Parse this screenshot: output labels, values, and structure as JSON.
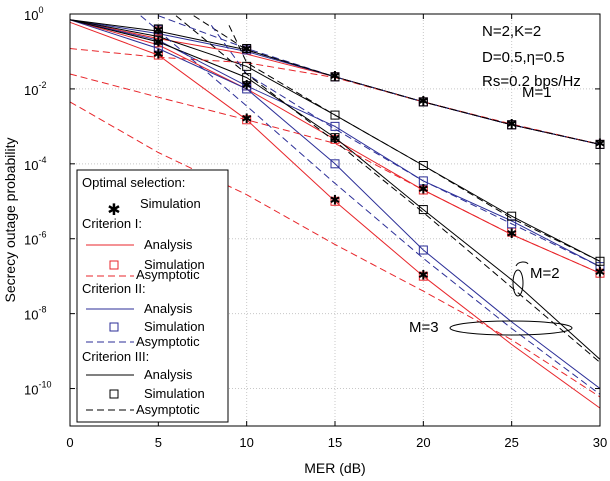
{
  "chart_data": {
    "type": "line",
    "xlabel": "MER (dB)",
    "ylabel": "Secrecy outage probability",
    "xlim": [
      0,
      30
    ],
    "ylim_log10": [
      -11,
      0
    ],
    "y_scale": "log",
    "x_ticks": [
      "0",
      "5",
      "10",
      "15",
      "20",
      "25",
      "30"
    ],
    "y_ticks": [
      {
        "base": "10",
        "exp": "0"
      },
      {
        "base": "10",
        "exp": "-2"
      },
      {
        "base": "10",
        "exp": "-4"
      },
      {
        "base": "10",
        "exp": "-6"
      },
      {
        "base": "10",
        "exp": "-8"
      },
      {
        "base": "10",
        "exp": "-10"
      }
    ],
    "grid": true,
    "params": {
      "line1": "N=2,K=2",
      "line2": "D=0.5,η=0.5",
      "line3": "Rs=0.2 bps/Hz"
    },
    "annotations": {
      "m1": "M=1",
      "m2": "M=2",
      "m3": "M=3"
    },
    "legend": {
      "placement": "bottom-left",
      "group_optimal": "Optimal selection:",
      "group_c1": "Criterion I:",
      "group_c2": "Criterion II:",
      "group_c3": "Criterion III:",
      "simulation": "Simulation",
      "analysis": "Analysis",
      "asymptotic": "Asymptotic"
    },
    "colors": {
      "criterion_1": "#e8262b",
      "criterion_2": "#2b2e97",
      "criterion_3": "#000000",
      "optimal": "#000000"
    },
    "series": [
      {
        "criterion": "I",
        "M": 1,
        "kind": "analysis",
        "x": [
          0,
          5,
          10,
          15,
          20,
          25,
          30
        ],
        "y": [
          0.7,
          0.22,
          0.085,
          0.021,
          0.0045,
          0.0011,
          0.00033
        ]
      },
      {
        "criterion": "I",
        "M": 1,
        "kind": "asymptotic",
        "x": [
          0,
          5,
          10,
          15,
          20,
          25,
          30
        ],
        "y": [
          0.12,
          0.07,
          0.05,
          0.02,
          0.0045,
          0.00115,
          0.00033
        ]
      },
      {
        "criterion": "I",
        "M": 1,
        "kind": "simulation",
        "x": [
          5,
          10,
          15,
          20,
          25,
          30
        ],
        "y": [
          0.35,
          0.11,
          0.021,
          0.0045,
          0.0011,
          0.00033
        ]
      },
      {
        "criterion": "II",
        "M": 1,
        "kind": "analysis",
        "x": [
          0,
          5,
          10,
          15,
          20,
          25,
          30
        ],
        "y": [
          0.7,
          0.3,
          0.1,
          0.021,
          0.0045,
          0.0011,
          0.00033
        ]
      },
      {
        "criterion": "II",
        "M": 1,
        "kind": "asymptotic",
        "x": [
          5,
          10,
          15,
          20,
          25,
          30
        ],
        "y": [
          0.9,
          0.12,
          0.021,
          0.0045,
          0.0011,
          0.00033
        ]
      },
      {
        "criterion": "II",
        "M": 1,
        "kind": "simulation",
        "x": [
          5,
          10,
          15,
          20,
          25,
          30
        ],
        "y": [
          0.38,
          0.11,
          0.021,
          0.0045,
          0.0011,
          0.00033
        ]
      },
      {
        "criterion": "III",
        "M": 1,
        "kind": "analysis",
        "x": [
          0,
          5,
          10,
          15,
          20,
          25,
          30
        ],
        "y": [
          0.7,
          0.35,
          0.11,
          0.021,
          0.0045,
          0.0011,
          0.00033
        ]
      },
      {
        "criterion": "III",
        "M": 1,
        "kind": "asymptotic",
        "x": [
          7,
          10,
          15,
          20,
          25,
          30
        ],
        "y": [
          0.9,
          0.11,
          0.021,
          0.0045,
          0.0011,
          0.00033
        ]
      },
      {
        "criterion": "III",
        "M": 1,
        "kind": "simulation",
        "x": [
          5,
          10,
          15,
          20,
          25,
          30
        ],
        "y": [
          0.4,
          0.12,
          0.021,
          0.0045,
          0.0011,
          0.00033
        ]
      },
      {
        "criterion": "I",
        "M": 2,
        "kind": "analysis",
        "x": [
          0,
          5,
          10,
          15,
          20,
          25,
          30
        ],
        "y": [
          0.7,
          0.15,
          0.01,
          0.00045,
          2e-05,
          1.3e-06,
          1.2e-07
        ]
      },
      {
        "criterion": "I",
        "M": 2,
        "kind": "asymptotic",
        "x": [
          0,
          5,
          10,
          15,
          20,
          25,
          30
        ],
        "y": [
          0.025,
          0.006,
          0.0015,
          0.00035,
          2e-05,
          1.3e-06,
          1.2e-07
        ]
      },
      {
        "criterion": "I",
        "M": 2,
        "kind": "simulation",
        "x": [
          5,
          10,
          15,
          20,
          25,
          30
        ],
        "y": [
          0.17,
          0.012,
          0.00045,
          2e-05,
          1.5e-06,
          1.2e-07
        ]
      },
      {
        "criterion": "II",
        "M": 2,
        "kind": "analysis",
        "x": [
          0,
          5,
          10,
          15,
          20,
          25,
          30
        ],
        "y": [
          0.7,
          0.2,
          0.012,
          0.001,
          3.5e-05,
          3e-06,
          1.8e-07
        ]
      },
      {
        "criterion": "II",
        "M": 2,
        "kind": "asymptotic",
        "x": [
          8,
          10,
          15,
          20,
          25,
          30
        ],
        "y": [
          0.5,
          0.025,
          0.00085,
          3.5e-05,
          2.5e-06,
          1.8e-07
        ]
      },
      {
        "criterion": "II",
        "M": 2,
        "kind": "simulation",
        "x": [
          5,
          10,
          15,
          20,
          25,
          30
        ],
        "y": [
          0.2,
          0.012,
          0.001,
          3.5e-05,
          2.5e-06,
          1.8e-07
        ]
      },
      {
        "criterion": "III",
        "M": 2,
        "kind": "analysis",
        "x": [
          0,
          5,
          10,
          15,
          20,
          25,
          30
        ],
        "y": [
          0.7,
          0.25,
          0.04,
          0.002,
          9e-05,
          4e-06,
          2.5e-07
        ]
      },
      {
        "criterion": "III",
        "M": 2,
        "kind": "asymptotic",
        "x": [
          9,
          10,
          15,
          20,
          25,
          30
        ],
        "y": [
          0.5,
          0.05,
          0.002,
          9e-05,
          3.5e-06,
          2.5e-07
        ]
      },
      {
        "criterion": "III",
        "M": 2,
        "kind": "simulation",
        "x": [
          5,
          10,
          15,
          20,
          25,
          30
        ],
        "y": [
          0.25,
          0.04,
          0.002,
          9e-05,
          4e-06,
          2.5e-07
        ]
      },
      {
        "criterion": "I",
        "M": 3,
        "kind": "analysis",
        "x": [
          0,
          5,
          10,
          15,
          20,
          25,
          30
        ],
        "y": [
          0.6,
          0.08,
          0.0015,
          1e-05,
          1e-07,
          1.5e-09,
          3e-11
        ]
      },
      {
        "criterion": "I",
        "M": 3,
        "kind": "asymptotic",
        "x": [
          0,
          5,
          10,
          15,
          20,
          25,
          30
        ],
        "y": [
          0.0045,
          0.0002,
          1.5e-05,
          7e-07,
          4e-08,
          2e-09,
          6e-11
        ]
      },
      {
        "criterion": "I",
        "M": 3,
        "kind": "simulation",
        "x": [
          5,
          10,
          15,
          20
        ],
        "y": [
          0.08,
          0.0015,
          1e-05,
          1e-07
        ]
      },
      {
        "criterion": "II",
        "M": 3,
        "kind": "analysis",
        "x": [
          0,
          5,
          10,
          15,
          20,
          25,
          30
        ],
        "y": [
          0.7,
          0.12,
          0.01,
          0.0001,
          5e-07,
          6e-09,
          1e-10
        ]
      },
      {
        "criterion": "II",
        "M": 3,
        "kind": "asymptotic",
        "x": [
          4,
          10,
          15,
          20,
          25,
          30
        ],
        "y": [
          0.9,
          0.0035,
          3e-05,
          3e-07,
          4e-09,
          7e-11
        ]
      },
      {
        "criterion": "II",
        "M": 3,
        "kind": "simulation",
        "x": [
          5,
          10,
          15,
          20
        ],
        "y": [
          0.13,
          0.01,
          0.0001,
          5e-07
        ]
      },
      {
        "criterion": "III",
        "M": 3,
        "kind": "analysis",
        "x": [
          0,
          5,
          10,
          15,
          20,
          25,
          30
        ],
        "y": [
          0.7,
          0.18,
          0.02,
          0.0005,
          6e-06,
          8e-08,
          6e-10
        ]
      },
      {
        "criterion": "III",
        "M": 3,
        "kind": "asymptotic",
        "x": [
          6,
          10,
          15,
          20,
          25,
          30
        ],
        "y": [
          0.9,
          0.025,
          0.0004,
          5e-06,
          5e-08,
          5e-10
        ]
      },
      {
        "criterion": "III",
        "M": 3,
        "kind": "simulation",
        "x": [
          5,
          10,
          15,
          20
        ],
        "y": [
          0.2,
          0.02,
          0.0005,
          6e-06
        ]
      },
      {
        "criterion": "Optimal",
        "M": 1,
        "kind": "simulation",
        "x": [
          5,
          10,
          15,
          20,
          25,
          30
        ],
        "y": [
          0.35,
          0.11,
          0.021,
          0.0045,
          0.0011,
          0.00033
        ]
      },
      {
        "criterion": "Optimal",
        "M": 2,
        "kind": "simulation",
        "x": [
          5,
          10,
          15,
          20,
          25,
          30
        ],
        "y": [
          0.17,
          0.012,
          0.00045,
          2e-05,
          1.3e-06,
          1.2e-07
        ]
      },
      {
        "criterion": "Optimal",
        "M": 3,
        "kind": "simulation",
        "x": [
          5,
          10,
          15,
          20
        ],
        "y": [
          0.08,
          0.0015,
          1e-05,
          1e-07
        ]
      }
    ]
  }
}
